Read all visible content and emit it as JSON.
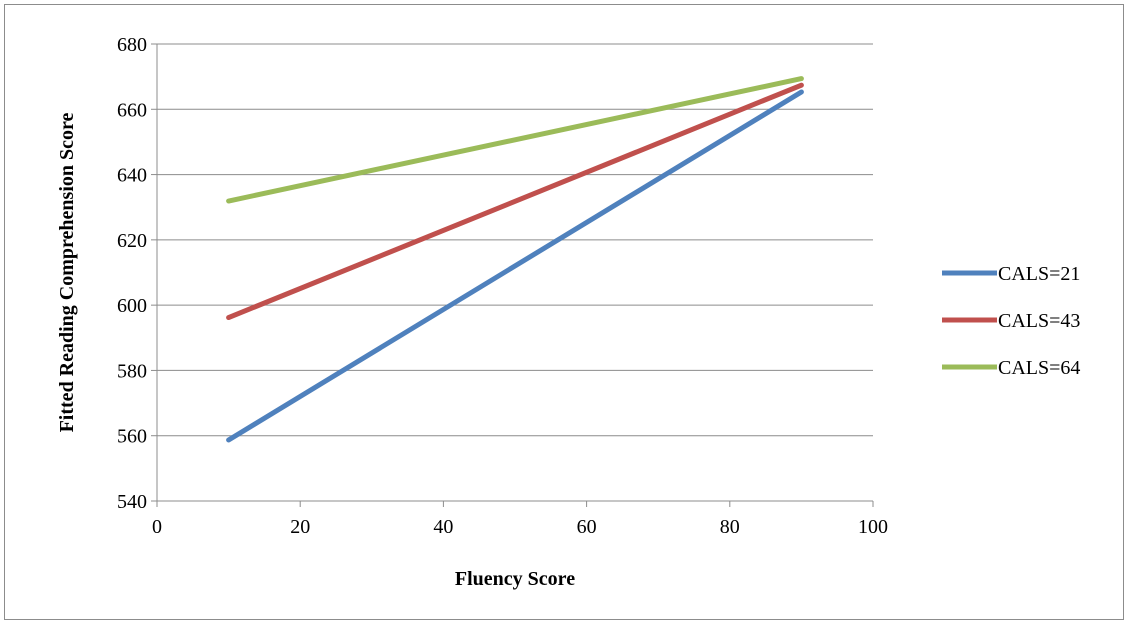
{
  "chart_data": {
    "type": "line",
    "title": "",
    "xlabel": "Fluency Score",
    "ylabel": "Fitted Reading Comprehension Score",
    "xlim": [
      0,
      100
    ],
    "ylim": [
      540,
      680
    ],
    "x_ticks": [
      0,
      20,
      40,
      60,
      80,
      100
    ],
    "y_ticks": [
      540,
      560,
      580,
      600,
      620,
      640,
      660,
      680
    ],
    "grid": "horizontal",
    "legend": "right",
    "series": [
      {
        "name": "CALS=21",
        "color": "#4f81bd",
        "x": [
          10,
          90
        ],
        "y": [
          558.7,
          665.3
        ]
      },
      {
        "name": "CALS=43",
        "color": "#c0504d",
        "x": [
          10,
          90
        ],
        "y": [
          596.2,
          667.4
        ]
      },
      {
        "name": "CALS=64",
        "color": "#9bbb59",
        "x": [
          10,
          90
        ],
        "y": [
          631.9,
          669.4
        ]
      }
    ]
  }
}
